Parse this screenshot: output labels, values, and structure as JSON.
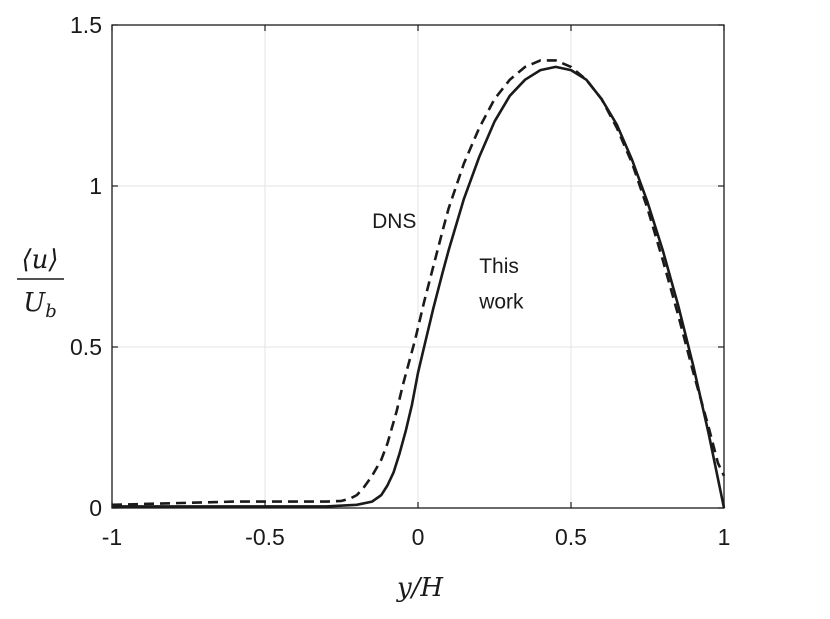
{
  "chart_data": {
    "type": "line",
    "xlabel": "y/H",
    "ylabel": {
      "numerator": "⟨u⟩",
      "denominator_base": "U",
      "denominator_sub": "b"
    },
    "xlim": [
      -1,
      1
    ],
    "ylim": [
      0,
      1.5
    ],
    "xticks": [
      -1,
      -0.5,
      0,
      0.5,
      1
    ],
    "xtick_labels": [
      "-1",
      "-0.5",
      "0",
      "0.5",
      "1"
    ],
    "yticks": [
      0,
      0.5,
      1,
      1.5
    ],
    "ytick_labels": [
      "0",
      "0.5",
      "1",
      "1.5"
    ],
    "grid": true,
    "legend": "none",
    "colors": {
      "line": "#1a1a1a",
      "grid": "#e3e3e3",
      "axes": "#1a1a1a"
    },
    "annotations": [
      {
        "text": "DNS",
        "x": -0.15,
        "y": 0.87
      },
      {
        "text": "This",
        "x": 0.2,
        "y": 0.73
      },
      {
        "text": "work",
        "x": 0.2,
        "y": 0.62
      }
    ],
    "series": [
      {
        "style": "dashed",
        "x": [
          -1,
          -0.8,
          -0.6,
          -0.4,
          -0.3,
          -0.25,
          -0.22,
          -0.2,
          -0.18,
          -0.15,
          -0.12,
          -0.1,
          -0.07,
          -0.05,
          -0.03,
          -0.01,
          0,
          0.02,
          0.05,
          0.08,
          0.1,
          0.15,
          0.2,
          0.25,
          0.3,
          0.35,
          0.4,
          0.45,
          0.5,
          0.55,
          0.6,
          0.65,
          0.7,
          0.75,
          0.8,
          0.85,
          0.9,
          0.95,
          0.98,
          1.0
        ],
        "y": [
          0.01,
          0.015,
          0.02,
          0.02,
          0.02,
          0.022,
          0.03,
          0.04,
          0.06,
          0.1,
          0.15,
          0.2,
          0.3,
          0.38,
          0.45,
          0.52,
          0.56,
          0.64,
          0.75,
          0.86,
          0.93,
          1.07,
          1.18,
          1.27,
          1.33,
          1.37,
          1.39,
          1.39,
          1.37,
          1.33,
          1.27,
          1.18,
          1.07,
          0.93,
          0.77,
          0.6,
          0.42,
          0.25,
          0.14,
          0.1
        ]
      },
      {
        "style": "solid",
        "x": [
          -1,
          -0.6,
          -0.3,
          -0.2,
          -0.15,
          -0.12,
          -0.1,
          -0.08,
          -0.06,
          -0.04,
          -0.02,
          0,
          0.02,
          0.05,
          0.08,
          0.1,
          0.15,
          0.2,
          0.25,
          0.3,
          0.35,
          0.4,
          0.45,
          0.5,
          0.55,
          0.6,
          0.65,
          0.7,
          0.75,
          0.8,
          0.85,
          0.9,
          0.95,
          1.0
        ],
        "y": [
          0.005,
          0.005,
          0.005,
          0.01,
          0.02,
          0.04,
          0.07,
          0.11,
          0.17,
          0.24,
          0.32,
          0.42,
          0.5,
          0.62,
          0.73,
          0.8,
          0.96,
          1.09,
          1.2,
          1.28,
          1.33,
          1.36,
          1.37,
          1.36,
          1.33,
          1.27,
          1.19,
          1.08,
          0.95,
          0.8,
          0.63,
          0.44,
          0.23,
          0.0
        ]
      }
    ]
  }
}
